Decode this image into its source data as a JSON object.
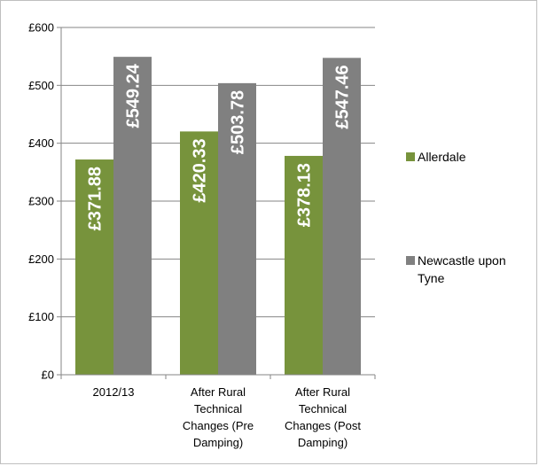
{
  "chart_data": {
    "type": "bar",
    "categories": [
      [
        "2012/13"
      ],
      [
        "After Rural",
        "Technical",
        "Changes (Pre",
        "Damping)"
      ],
      [
        "After Rural",
        "Technical",
        "Changes (Post",
        "Damping)"
      ]
    ],
    "series": [
      {
        "name": "Allerdale",
        "values": [
          371.88,
          420.33,
          378.13
        ],
        "labels": [
          "£371.88",
          "£420.33",
          "£378.13"
        ],
        "color": "#77933c"
      },
      {
        "name": [
          "Newcastle upon",
          "Tyne"
        ],
        "values": [
          549.24,
          503.78,
          547.46
        ],
        "labels": [
          "£549.24",
          "£503.78",
          "£547.46"
        ],
        "color": "#808080"
      }
    ],
    "ylim": [
      0,
      600
    ],
    "yticks": [
      0,
      100,
      200,
      300,
      400,
      500,
      600
    ],
    "ytick_labels": [
      "£0",
      "£100",
      "£200",
      "£300",
      "£400",
      "£500",
      "£600"
    ],
    "grid": true,
    "legend_position": "right"
  }
}
